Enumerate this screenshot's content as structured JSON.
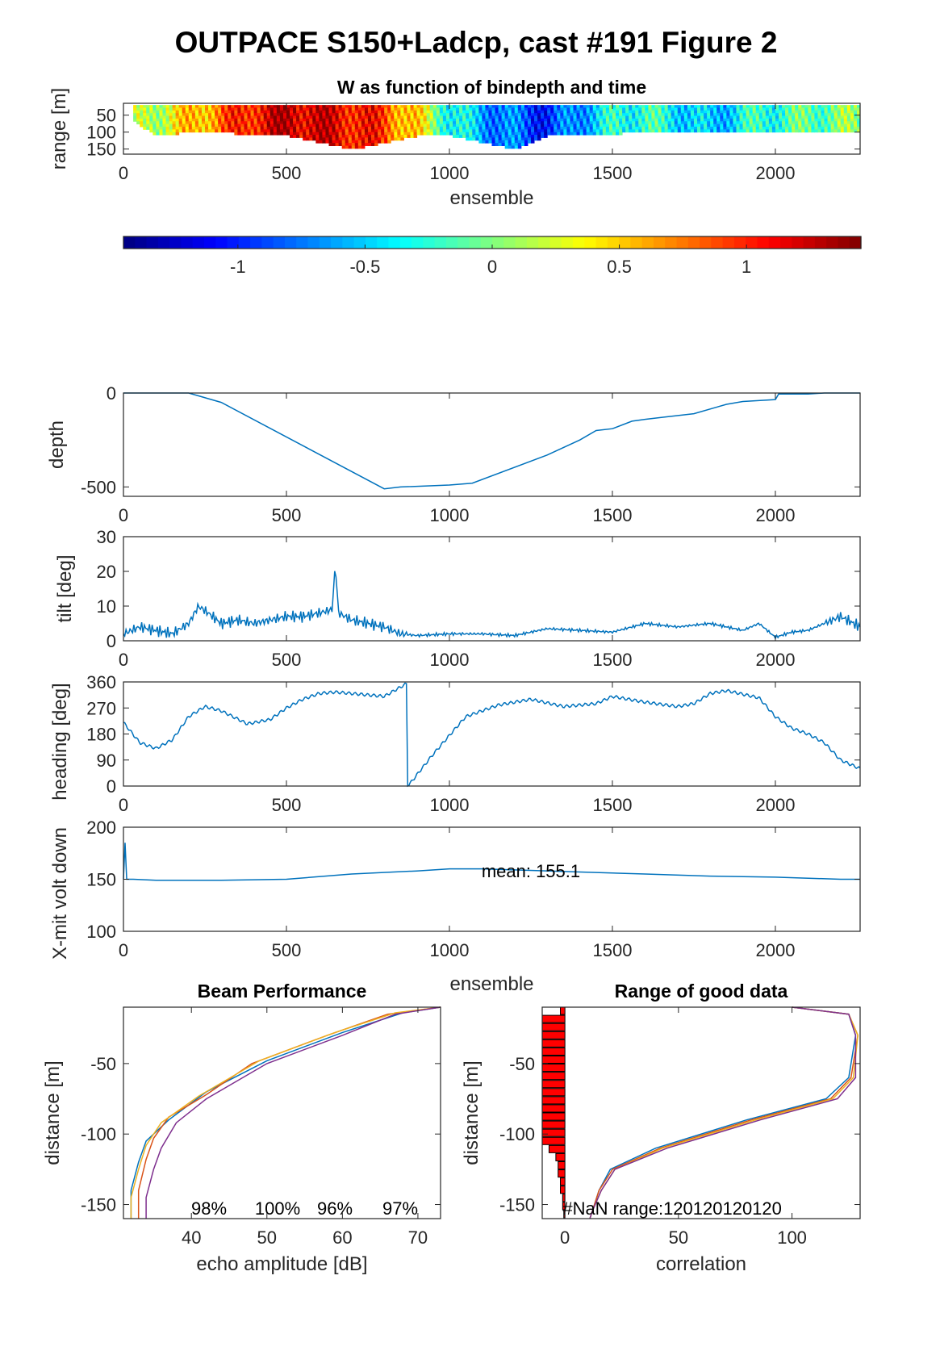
{
  "title": "OUTPACE S150+Ladcp, cast #191 Figure 2",
  "colors": {
    "line": "#0072BD",
    "axis": "#262626",
    "bar": "#ff0000",
    "series": [
      "#0072BD",
      "#D95319",
      "#EDB120",
      "#7E2F8E"
    ]
  },
  "chart_data": [
    {
      "id": "wmap",
      "type": "heatmap",
      "title": "W as function of bindepth and time",
      "xlabel": "ensemble",
      "ylabel": "range [m]",
      "xlim": [
        0,
        2260
      ],
      "ylim": [
        15,
        165
      ],
      "y_reversed": true,
      "xticks": [
        0,
        500,
        1000,
        1500,
        2000
      ],
      "yticks": [
        50,
        100,
        150
      ],
      "colormap": "jet",
      "clim": [
        -1.45,
        1.45
      ],
      "x": [
        0,
        100,
        200,
        300,
        400,
        500,
        600,
        700,
        800,
        900,
        1000,
        1100,
        1200,
        1300,
        1400,
        1500,
        1600,
        1700,
        1800,
        1900,
        2000,
        2100,
        2200,
        2260
      ],
      "w": [
        0.0,
        0.2,
        0.5,
        0.8,
        1.1,
        1.3,
        1.2,
        1.1,
        0.9,
        0.4,
        -0.3,
        -0.6,
        -0.8,
        -1.0,
        -0.6,
        -0.3,
        -0.2,
        -0.4,
        -0.6,
        -0.3,
        -0.2,
        -0.1,
        0.0,
        0.0
      ],
      "max_range": [
        55,
        110,
        100,
        100,
        110,
        110,
        130,
        150,
        130,
        110,
        110,
        130,
        150,
        110,
        105,
        105,
        100,
        100,
        100,
        100,
        100,
        100,
        100,
        100
      ]
    },
    {
      "id": "colorbar",
      "type": "heatmap",
      "colormap": "jet",
      "clim": [
        -1.45,
        1.45
      ],
      "ticks": [
        -1,
        -0.5,
        0,
        0.5,
        1
      ],
      "tick_labels": [
        "-1",
        "-0.5",
        "0",
        "0.5",
        "1"
      ]
    },
    {
      "id": "depth",
      "type": "line",
      "ylabel": "depth",
      "xlim": [
        0,
        2260
      ],
      "ylim": [
        -550,
        0
      ],
      "yticks": [
        -500,
        0
      ],
      "xticks": [
        0,
        500,
        1000,
        1500,
        2000
      ],
      "x": [
        0,
        200,
        300,
        800,
        850,
        1000,
        1070,
        1300,
        1400,
        1450,
        1500,
        1560,
        1600,
        1650,
        1750,
        1850,
        1900,
        2000,
        2010,
        2100,
        2150,
        2260
      ],
      "y": [
        0,
        0,
        -50,
        -510,
        -500,
        -490,
        -480,
        -330,
        -250,
        -200,
        -190,
        -150,
        -140,
        -130,
        -110,
        -60,
        -45,
        -35,
        -5,
        -5,
        0,
        0
      ]
    },
    {
      "id": "tilt",
      "type": "line",
      "ylabel": "tilt [deg]",
      "xlim": [
        0,
        2260
      ],
      "ylim": [
        0,
        30
      ],
      "yticks": [
        0,
        10,
        20,
        30
      ],
      "xticks": [
        0,
        500,
        1000,
        1500,
        2000
      ],
      "x": [
        0,
        50,
        100,
        150,
        200,
        230,
        260,
        300,
        350,
        400,
        450,
        500,
        550,
        600,
        640,
        650,
        660,
        700,
        750,
        800,
        850,
        900,
        1000,
        1100,
        1200,
        1300,
        1400,
        1500,
        1600,
        1700,
        1800,
        1850,
        1900,
        1950,
        2000,
        2050,
        2100,
        2150,
        2200,
        2260
      ],
      "y": [
        2,
        4,
        3,
        2,
        5,
        10,
        8,
        5,
        6,
        5,
        6,
        7,
        7,
        8,
        9,
        22,
        8,
        6,
        5,
        4,
        2,
        1.5,
        2,
        2,
        1.5,
        3.5,
        3,
        2.5,
        5,
        4,
        5,
        4,
        3,
        5,
        1,
        2.5,
        3,
        5,
        7,
        4
      ]
    },
    {
      "id": "heading",
      "type": "line",
      "ylabel": "heading [deg]",
      "xlim": [
        0,
        2260
      ],
      "ylim": [
        0,
        360
      ],
      "yticks": [
        0,
        90,
        180,
        270,
        360
      ],
      "xticks": [
        0,
        500,
        1000,
        1500,
        2000
      ],
      "x": [
        0,
        50,
        100,
        150,
        200,
        250,
        300,
        380,
        450,
        500,
        550,
        600,
        650,
        700,
        800,
        870,
        871,
        880,
        950,
        1050,
        1150,
        1250,
        1350,
        1450,
        1500,
        1600,
        1700,
        1750,
        1800,
        1850,
        1950,
        2000,
        2050,
        2100,
        2150,
        2200,
        2260
      ],
      "y": [
        220,
        150,
        130,
        160,
        240,
        275,
        260,
        215,
        230,
        270,
        300,
        320,
        325,
        320,
        310,
        355,
        0,
        10,
        110,
        240,
        280,
        300,
        275,
        285,
        310,
        290,
        275,
        285,
        320,
        330,
        305,
        240,
        200,
        180,
        150,
        90,
        60
      ]
    },
    {
      "id": "voltage",
      "type": "line",
      "ylabel": "X-mit volt down",
      "xlabel": "ensemble",
      "xlim": [
        0,
        2260
      ],
      "ylim": [
        100,
        200
      ],
      "yticks": [
        100,
        150,
        200
      ],
      "xticks": [
        0,
        500,
        1000,
        1500,
        2000
      ],
      "annotation": "mean: 155.1",
      "x": [
        0,
        5,
        10,
        30,
        100,
        300,
        500,
        700,
        900,
        1000,
        1100,
        1200,
        1400,
        1600,
        1800,
        2000,
        2200,
        2260
      ],
      "y": [
        150,
        185,
        150,
        150,
        149,
        149,
        150,
        155,
        158,
        160,
        160,
        159,
        157,
        155,
        153,
        152,
        150,
        150
      ]
    },
    {
      "id": "beam",
      "type": "line",
      "title": "Beam Performance",
      "xlabel": "echo amplitude [dB]",
      "ylabel": "distance [m]",
      "xlim": [
        31,
        73
      ],
      "ylim": [
        -160,
        -10
      ],
      "xticks": [
        40,
        50,
        60,
        70
      ],
      "yticks": [
        -150,
        -100,
        -50
      ],
      "percent_labels": [
        "98%",
        "100%",
        "96%",
        "97%"
      ],
      "series": [
        {
          "x": [
            73,
            68,
            60,
            50,
            42,
            37,
            34,
            33,
            32,
            32
          ],
          "y": [
            -10,
            -14,
            -28,
            -48,
            -70,
            -90,
            -105,
            -120,
            -140,
            -160
          ]
        },
        {
          "x": [
            73,
            66,
            58,
            48,
            42,
            37,
            35,
            34,
            33,
            33
          ],
          "y": [
            -10,
            -15,
            -30,
            -50,
            -72,
            -88,
            -103,
            -118,
            -140,
            -160
          ]
        },
        {
          "x": [
            73,
            67,
            59,
            49,
            41,
            36,
            34,
            33,
            32,
            32
          ],
          "y": [
            -10,
            -14,
            -28,
            -48,
            -73,
            -92,
            -108,
            -125,
            -145,
            -160
          ]
        },
        {
          "x": [
            73,
            67,
            60,
            50,
            42,
            38,
            36,
            35,
            34,
            34
          ],
          "y": [
            -10,
            -15,
            -30,
            -50,
            -75,
            -92,
            -110,
            -125,
            -145,
            -160
          ]
        }
      ]
    },
    {
      "id": "range",
      "type": "line",
      "title": "Range of good data",
      "xlabel": "correlation",
      "ylabel": "distance [m]",
      "xlim": [
        -10,
        130
      ],
      "ylim": [
        -160,
        -10
      ],
      "xticks": [
        0,
        50,
        100
      ],
      "yticks": [
        -150,
        -100,
        -50
      ],
      "annotation": "#NaN range:120120120120",
      "nan_counts": [
        2,
        10,
        10,
        10,
        10,
        10,
        10,
        10,
        10,
        10,
        10,
        10,
        10,
        10,
        10,
        10,
        10,
        7,
        4,
        3,
        3,
        2,
        2,
        1,
        1,
        0.5
      ],
      "series": [
        {
          "x": [
            100,
            125,
            128,
            125,
            115,
            80,
            40,
            20,
            15,
            12,
            11
          ],
          "y": [
            -10,
            -15,
            -30,
            -60,
            -75,
            -90,
            -110,
            -125,
            -140,
            -155,
            -160
          ]
        },
        {
          "x": [
            100,
            125,
            129,
            126,
            117,
            82,
            42,
            21,
            15,
            12,
            11
          ],
          "y": [
            -10,
            -15,
            -30,
            -60,
            -75,
            -90,
            -110,
            -125,
            -140,
            -155,
            -160
          ]
        },
        {
          "x": [
            100,
            125,
            129,
            127,
            118,
            84,
            43,
            22,
            16,
            12,
            11
          ],
          "y": [
            -10,
            -15,
            -30,
            -60,
            -75,
            -90,
            -110,
            -125,
            -140,
            -155,
            -160
          ]
        },
        {
          "x": [
            100,
            125,
            128,
            128,
            120,
            86,
            45,
            22,
            16,
            12,
            11
          ],
          "y": [
            -10,
            -15,
            -30,
            -60,
            -75,
            -90,
            -110,
            -125,
            -140,
            -155,
            -160
          ]
        }
      ]
    }
  ]
}
